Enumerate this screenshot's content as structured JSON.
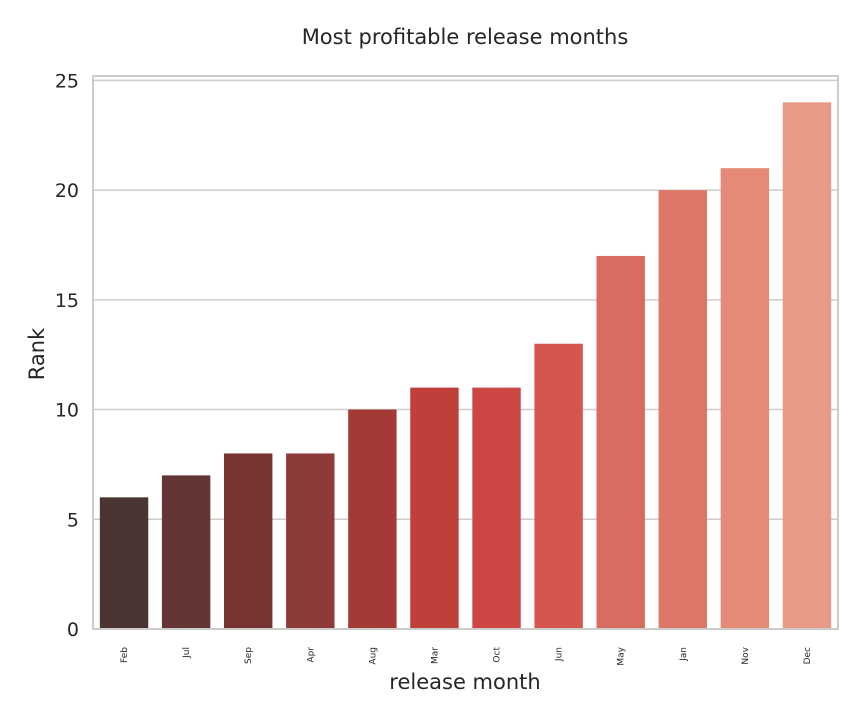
{
  "chart_data": {
    "type": "bar",
    "title": "Most profitable release months",
    "xlabel": "release month",
    "ylabel": "Rank",
    "categories": [
      "Feb",
      "Jul",
      "Sep",
      "Apr",
      "Aug",
      "Mar",
      "Oct",
      "Jun",
      "May",
      "Jan",
      "Nov",
      "Dec"
    ],
    "values": [
      6,
      7,
      8,
      8,
      10,
      11,
      11,
      13,
      17,
      20,
      21,
      24
    ],
    "colors": [
      "#4b3532",
      "#633534",
      "#773433",
      "#8c3b39",
      "#a43a36",
      "#bf3f3a",
      "#cc4743",
      "#d4574e",
      "#d96c60",
      "#df7768",
      "#e58a77",
      "#e89a86"
    ],
    "ylim": [
      0,
      25.2
    ],
    "yticks": [
      0,
      5,
      10,
      15,
      20,
      25
    ],
    "grid": "horizontal",
    "legend": "none"
  }
}
